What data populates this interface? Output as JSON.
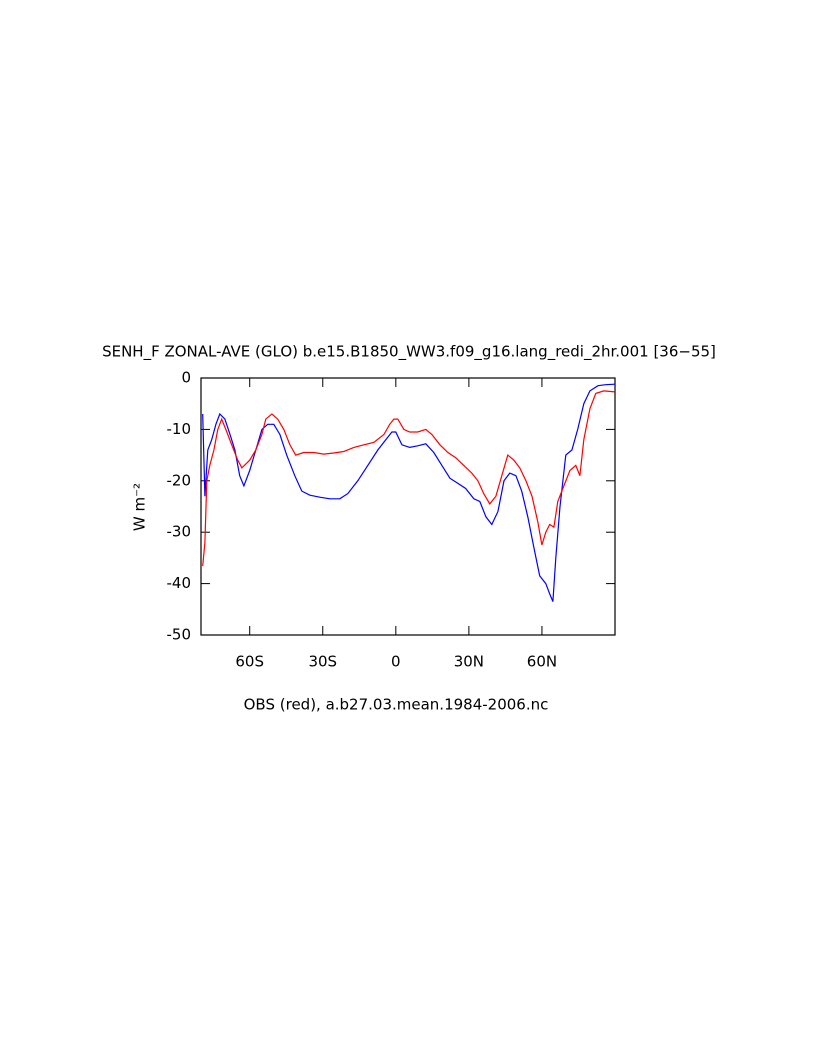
{
  "chart_data": {
    "type": "line",
    "title": "SENH_F ZONAL-AVE (GLO) b.e15.B1850_WW3.f09_g16.lang_redi_2hr.001 [36−55]",
    "xlabel": "OBS (red), a.b27.03.mean.1984-2006.nc",
    "ylabel": "W m⁻²",
    "xlim": [
      -80,
      90
    ],
    "ylim": [
      -50,
      0
    ],
    "xticks": [
      {
        "value": -60,
        "label": "60S"
      },
      {
        "value": -30,
        "label": "30S"
      },
      0,
      {
        "value": 30,
        "label": "30N"
      },
      {
        "value": 60,
        "label": "60N"
      }
    ],
    "yticks": [
      -50,
      -40,
      -30,
      -20,
      -10,
      0
    ],
    "series": [
      {
        "color": "#0000ff",
        "x": [
          -79.3,
          -78.4,
          -77.2,
          -75.6,
          -73.9,
          -72.3,
          -70.2,
          -68.1,
          -66.1,
          -64.1,
          -62.4,
          -60.0,
          -57.5,
          -55.0,
          -52.6,
          -50.1,
          -47.6,
          -44.8,
          -41.5,
          -38.6,
          -35.3,
          -31.2,
          -27.1,
          -23.0,
          -19.7,
          -15.6,
          -11.5,
          -7.4,
          -4.1,
          -1.6,
          0,
          2.5,
          5.7,
          9.0,
          12.3,
          15.6,
          18.9,
          22.2,
          25.5,
          28.7,
          32.0,
          34.5,
          37.0,
          39.4,
          41.9,
          44.4,
          46.8,
          49.3,
          51.7,
          54.2,
          56.7,
          59.1,
          61.6,
          63.2,
          64.5,
          65.7,
          67.4,
          69.8,
          72.3,
          74.7,
          77.2,
          79.7,
          83.0,
          86.2,
          89.9
        ],
        "values": [
          -7,
          -23,
          -14,
          -12,
          -9,
          -7,
          -8,
          -11,
          -14,
          -19,
          -21,
          -18,
          -14,
          -10,
          -9,
          -9,
          -11,
          -15,
          -19,
          -22,
          -22.8,
          -23.2,
          -23.5,
          -23.5,
          -22.5,
          -20,
          -17,
          -14,
          -12,
          -10.5,
          -10.5,
          -13,
          -13.5,
          -13.2,
          -12.8,
          -14.5,
          -17,
          -19.5,
          -20.5,
          -21.5,
          -23.5,
          -24,
          -27,
          -28.5,
          -26,
          -20,
          -18.5,
          -19,
          -22,
          -27,
          -33,
          -38.5,
          -40,
          -42,
          -43.5,
          -35,
          -25,
          -15,
          -14,
          -10,
          -5,
          -2.5,
          -1.5,
          -1.3,
          -1.2
        ]
      },
      {
        "color": "#ff0000",
        "x": [
          -79.3,
          -78.4,
          -77.6,
          -76.4,
          -74.7,
          -73.1,
          -71.5,
          -69.8,
          -67.4,
          -64.9,
          -63.2,
          -60.0,
          -57.5,
          -55.0,
          -53.4,
          -50.9,
          -48.5,
          -46.0,
          -43.5,
          -41.1,
          -37.8,
          -33.7,
          -29.6,
          -25.5,
          -21.4,
          -17.2,
          -13.1,
          -9.0,
          -4.9,
          -2.5,
          -0.8,
          0.8,
          3.3,
          5.7,
          9.0,
          12.3,
          14.8,
          18.1,
          21.4,
          24.6,
          27.9,
          31.2,
          33.7,
          36.1,
          38.6,
          41.1,
          43.5,
          46.0,
          48.5,
          50.9,
          53.4,
          55.9,
          58.3,
          60.0,
          61.6,
          63.2,
          64.9,
          66.5,
          69.0,
          71.5,
          73.9,
          75.6,
          77.2,
          79.7,
          82.1,
          85.4,
          89.9
        ],
        "values": [
          -36.6,
          -32,
          -20,
          -17,
          -14,
          -10,
          -8,
          -10,
          -13,
          -16,
          -17.5,
          -16,
          -14,
          -11,
          -8,
          -7,
          -8,
          -10,
          -13,
          -15,
          -14.5,
          -14.5,
          -14.8,
          -14.6,
          -14.3,
          -13.5,
          -13,
          -12.5,
          -11,
          -9,
          -8,
          -8,
          -10,
          -10.5,
          -10.5,
          -10,
          -11,
          -13,
          -14.5,
          -15.5,
          -17,
          -18.5,
          -20,
          -22.5,
          -24.5,
          -23,
          -19,
          -15,
          -16,
          -17.5,
          -20,
          -23,
          -28,
          -32.5,
          -30,
          -28.5,
          -29,
          -24,
          -21,
          -18,
          -17,
          -19,
          -12,
          -6,
          -3,
          -2.5,
          -2.7
        ]
      }
    ]
  }
}
